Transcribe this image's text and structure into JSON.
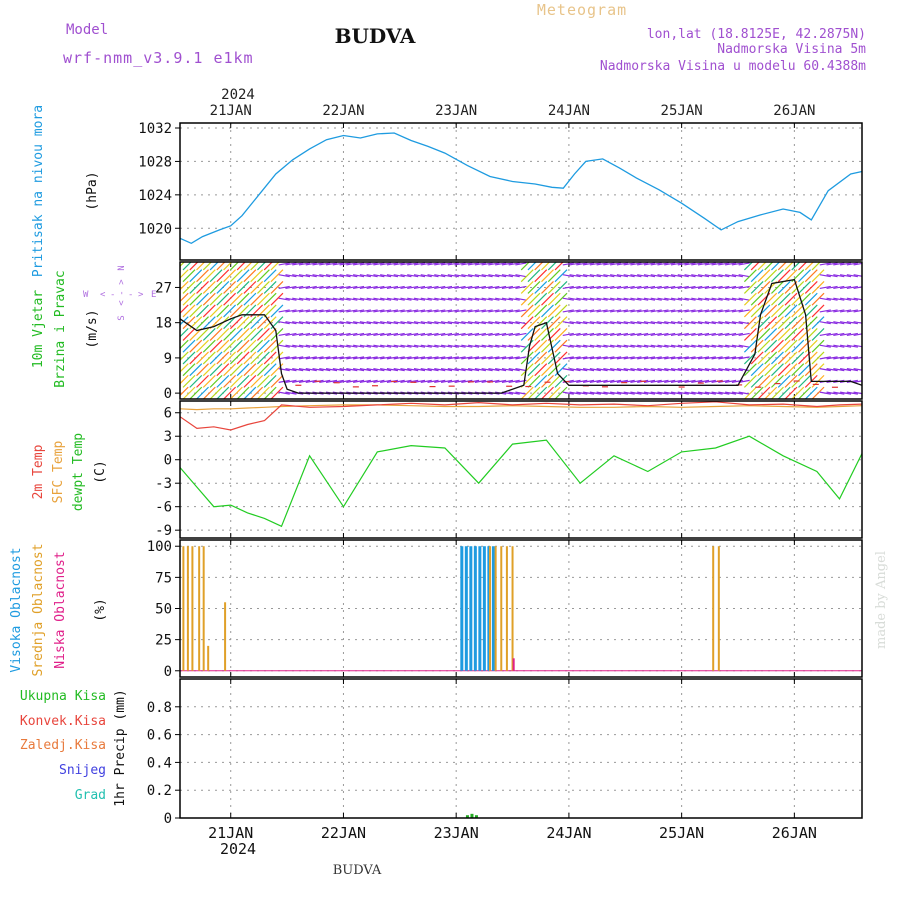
{
  "header": {
    "model_label": "Model",
    "model_name": "wrf-nmm_v3.9.1 e1km",
    "title": "BUDVA",
    "meteogram": "Meteogram",
    "lonlat": "lon,lat (18.8125E, 42.2875N)",
    "elev": "Nadmorska Visina 5m",
    "elev_model": "Nadmorska Visina u modelu 60.4388m"
  },
  "footer_title": "BUDVA",
  "watermark": "made by Angel",
  "year": "2024",
  "x_axis": {
    "ticks": [
      "21JAN",
      "22JAN",
      "23JAN",
      "24JAN",
      "25JAN",
      "26JAN"
    ],
    "range_days": [
      20.55,
      26.6
    ]
  },
  "colors": {
    "pressure": "#1e9be0",
    "temp2m": "#e8453c",
    "sfc": "#e8a23c",
    "dewpt": "#22cc22",
    "wind_strong": "#8a2be2",
    "cloud_high": "#1e9be0",
    "cloud_mid": "#e0a028",
    "cloud_low": "#e0208a",
    "precip": "#22aa22"
  },
  "panels": [
    {
      "id": "pressure",
      "labels": [
        "Pritisak na nivou mora"
      ],
      "unit": "(hPa)",
      "ticks": [
        "1020",
        "1024",
        "1028",
        "1032"
      ]
    },
    {
      "id": "wind",
      "labels": [
        "10m Vjetar",
        "Brzina i Pravac"
      ],
      "unit": "(m/s)",
      "ticks": [
        "0",
        "9",
        "18",
        "27"
      ],
      "compass": {
        "n": "N",
        "s": "S",
        "e": "E",
        "w": "W"
      }
    },
    {
      "id": "temp",
      "labels": [
        "2m Temp",
        "SFC Temp",
        "dewpt Temp"
      ],
      "unit": "(C)",
      "ticks": [
        "-9",
        "-6",
        "-3",
        "0",
        "3",
        "6"
      ]
    },
    {
      "id": "cloud",
      "labels": [
        "Visoka Oblacnost",
        "Srednja Oblacnost",
        "Niska Oblacnost"
      ],
      "unit": "(%)",
      "ticks": [
        "0",
        "25",
        "50",
        "75",
        "100"
      ]
    },
    {
      "id": "precip",
      "labels": [
        "Ukupna Kisa",
        "Konvek.Kisa",
        "Zaledj.Kisa",
        "Snijeg",
        "Grad"
      ],
      "unit": "1hr Precip (mm)",
      "ticks": [
        "0",
        "0.2",
        "0.4",
        "0.6",
        "0.8"
      ]
    }
  ],
  "chart_data": [
    {
      "type": "line",
      "title": "Pritisak na nivou mora",
      "ylabel": "(hPa)",
      "ylim": [
        1016.2,
        1032.6
      ],
      "grid": true,
      "x": [
        20.55,
        20.65,
        20.75,
        20.9,
        21.0,
        21.1,
        21.25,
        21.4,
        21.55,
        21.7,
        21.85,
        22.0,
        22.15,
        22.3,
        22.45,
        22.6,
        22.75,
        22.9,
        23.1,
        23.3,
        23.5,
        23.7,
        23.85,
        23.95,
        24.05,
        24.15,
        24.3,
        24.45,
        24.6,
        24.8,
        25.0,
        25.2,
        25.35,
        25.5,
        25.7,
        25.9,
        26.05,
        26.15,
        26.3,
        26.5,
        26.6
      ],
      "series": [
        {
          "values": [
            1018.8,
            1018.2,
            1019.0,
            1019.8,
            1020.3,
            1021.5,
            1024.0,
            1026.5,
            1028.2,
            1029.5,
            1030.6,
            1031.1,
            1030.8,
            1031.3,
            1031.4,
            1030.5,
            1029.8,
            1029.0,
            1027.5,
            1026.2,
            1025.6,
            1025.3,
            1024.9,
            1024.8,
            1026.5,
            1028.0,
            1028.3,
            1027.2,
            1026.0,
            1024.6,
            1023.0,
            1021.2,
            1019.8,
            1020.8,
            1021.6,
            1022.3,
            1021.9,
            1021.0,
            1024.5,
            1026.5,
            1026.8
          ]
        }
      ]
    },
    {
      "type": "line",
      "title": "10m Vjetar Brzina i Pravac",
      "ylabel": "(m/s)",
      "ylim": [
        -1.5,
        33.5
      ],
      "grid": true,
      "x": [
        20.55,
        20.7,
        20.85,
        21.0,
        21.1,
        21.3,
        21.4,
        21.45,
        21.5,
        21.6,
        21.8,
        22.0,
        22.5,
        23.0,
        23.4,
        23.6,
        23.65,
        23.7,
        23.8,
        23.9,
        24.0,
        24.5,
        25.0,
        25.5,
        25.65,
        25.7,
        25.8,
        26.0,
        26.1,
        26.15,
        26.3,
        26.5,
        26.6
      ],
      "series": [
        {
          "values": [
            19,
            16,
            17,
            19,
            20,
            20,
            16,
            5,
            1,
            0,
            0,
            0,
            0,
            0,
            0,
            2,
            12,
            17,
            18,
            5,
            2,
            2,
            2,
            2,
            10,
            20,
            28,
            29,
            20,
            3,
            3,
            3,
            2
          ]
        }
      ]
    },
    {
      "type": "line",
      "title": "2m Temp / SFC Temp / dewpt Temp",
      "ylabel": "(C)",
      "ylim": [
        -10,
        7.5
      ],
      "grid": true,
      "x": [
        20.55,
        20.7,
        20.85,
        21.0,
        21.15,
        21.3,
        21.45,
        21.7,
        22.0,
        22.3,
        22.6,
        22.9,
        23.2,
        23.5,
        23.8,
        24.1,
        24.4,
        24.7,
        25.0,
        25.3,
        25.6,
        25.9,
        26.2,
        26.4,
        26.6
      ],
      "series": [
        {
          "name": "2m Temp",
          "values": [
            5.5,
            4.0,
            4.2,
            3.8,
            4.5,
            5.0,
            7.0,
            6.7,
            6.8,
            7.0,
            7.2,
            7.0,
            7.3,
            7.0,
            7.2,
            7.0,
            7.1,
            6.9,
            7.2,
            7.4,
            7.0,
            7.1,
            6.8,
            7.0,
            7.1
          ]
        },
        {
          "name": "SFC Temp",
          "values": [
            6.5,
            6.4,
            6.5,
            6.5,
            6.6,
            6.7,
            6.8,
            6.9,
            7.0,
            7.0,
            6.9,
            6.8,
            6.8,
            6.9,
            6.8,
            6.7,
            6.7,
            6.8,
            6.7,
            6.8,
            6.9,
            6.8,
            6.7,
            6.8,
            6.9
          ]
        },
        {
          "name": "dewpt Temp",
          "values": [
            -1.0,
            -3.5,
            -6.0,
            -5.8,
            -6.8,
            -7.5,
            -8.5,
            0.5,
            -6.0,
            1.0,
            1.8,
            1.5,
            -3.0,
            2.0,
            2.5,
            -3.0,
            0.5,
            -1.5,
            1.0,
            1.5,
            3.0,
            0.5,
            -1.5,
            -5.0,
            0.8
          ]
        }
      ]
    },
    {
      "type": "bar",
      "title": "Visoka / Srednja / Niska Oblacnost",
      "ylabel": "(%)",
      "ylim": [
        -5,
        105
      ],
      "grid": true,
      "series": [
        {
          "name": "Visoka Oblacnost",
          "x": [
            23.05,
            23.09,
            23.13,
            23.17,
            23.21,
            23.25,
            23.29,
            23.33
          ],
          "values": [
            100,
            100,
            100,
            100,
            100,
            100,
            100,
            100
          ]
        },
        {
          "name": "Srednja Oblacnost",
          "x": [
            20.58,
            20.62,
            20.66,
            20.72,
            20.76,
            20.8,
            20.95,
            23.3,
            23.35,
            23.4,
            23.45,
            23.5,
            25.28,
            25.33
          ],
          "values": [
            100,
            100,
            100,
            100,
            100,
            20,
            55,
            100,
            100,
            100,
            100,
            100,
            100,
            100
          ]
        },
        {
          "name": "Niska Oblacnost",
          "x": [
            23.51
          ],
          "values": [
            10
          ]
        }
      ]
    },
    {
      "type": "bar",
      "title": "1hr Precip",
      "ylabel": "1hr Precip (mm)",
      "ylim": [
        0,
        1.0
      ],
      "grid": true,
      "series": [
        {
          "name": "Ukupna Kisa",
          "x": [
            23.1,
            23.14,
            23.18
          ],
          "values": [
            0.02,
            0.03,
            0.02
          ]
        }
      ]
    }
  ]
}
